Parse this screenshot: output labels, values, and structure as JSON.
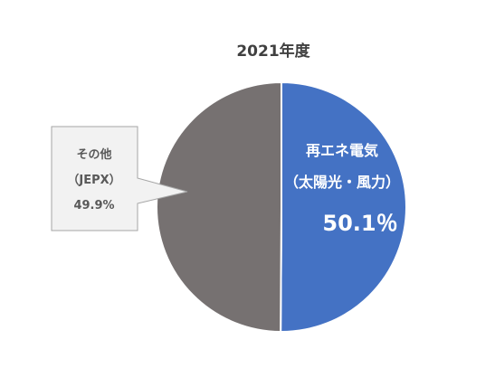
{
  "chart_data": {
    "type": "pie",
    "title": "2021年度",
    "slices": [
      {
        "label_line1": "再エネ電気",
        "label_line2": "（太陽光・風力）",
        "value": 50.1,
        "value_label": "50.1％",
        "color": "#4472C4"
      },
      {
        "label_line1": "その他",
        "label_line2": "（JEPX）",
        "value": 49.9,
        "value_label": "49.9%",
        "color": "#767171"
      }
    ],
    "start_angle_deg": 0,
    "direction": "clockwise",
    "legend": "none",
    "callout_fill": "#F2F2F2",
    "callout_border": "#A6A6A6"
  }
}
